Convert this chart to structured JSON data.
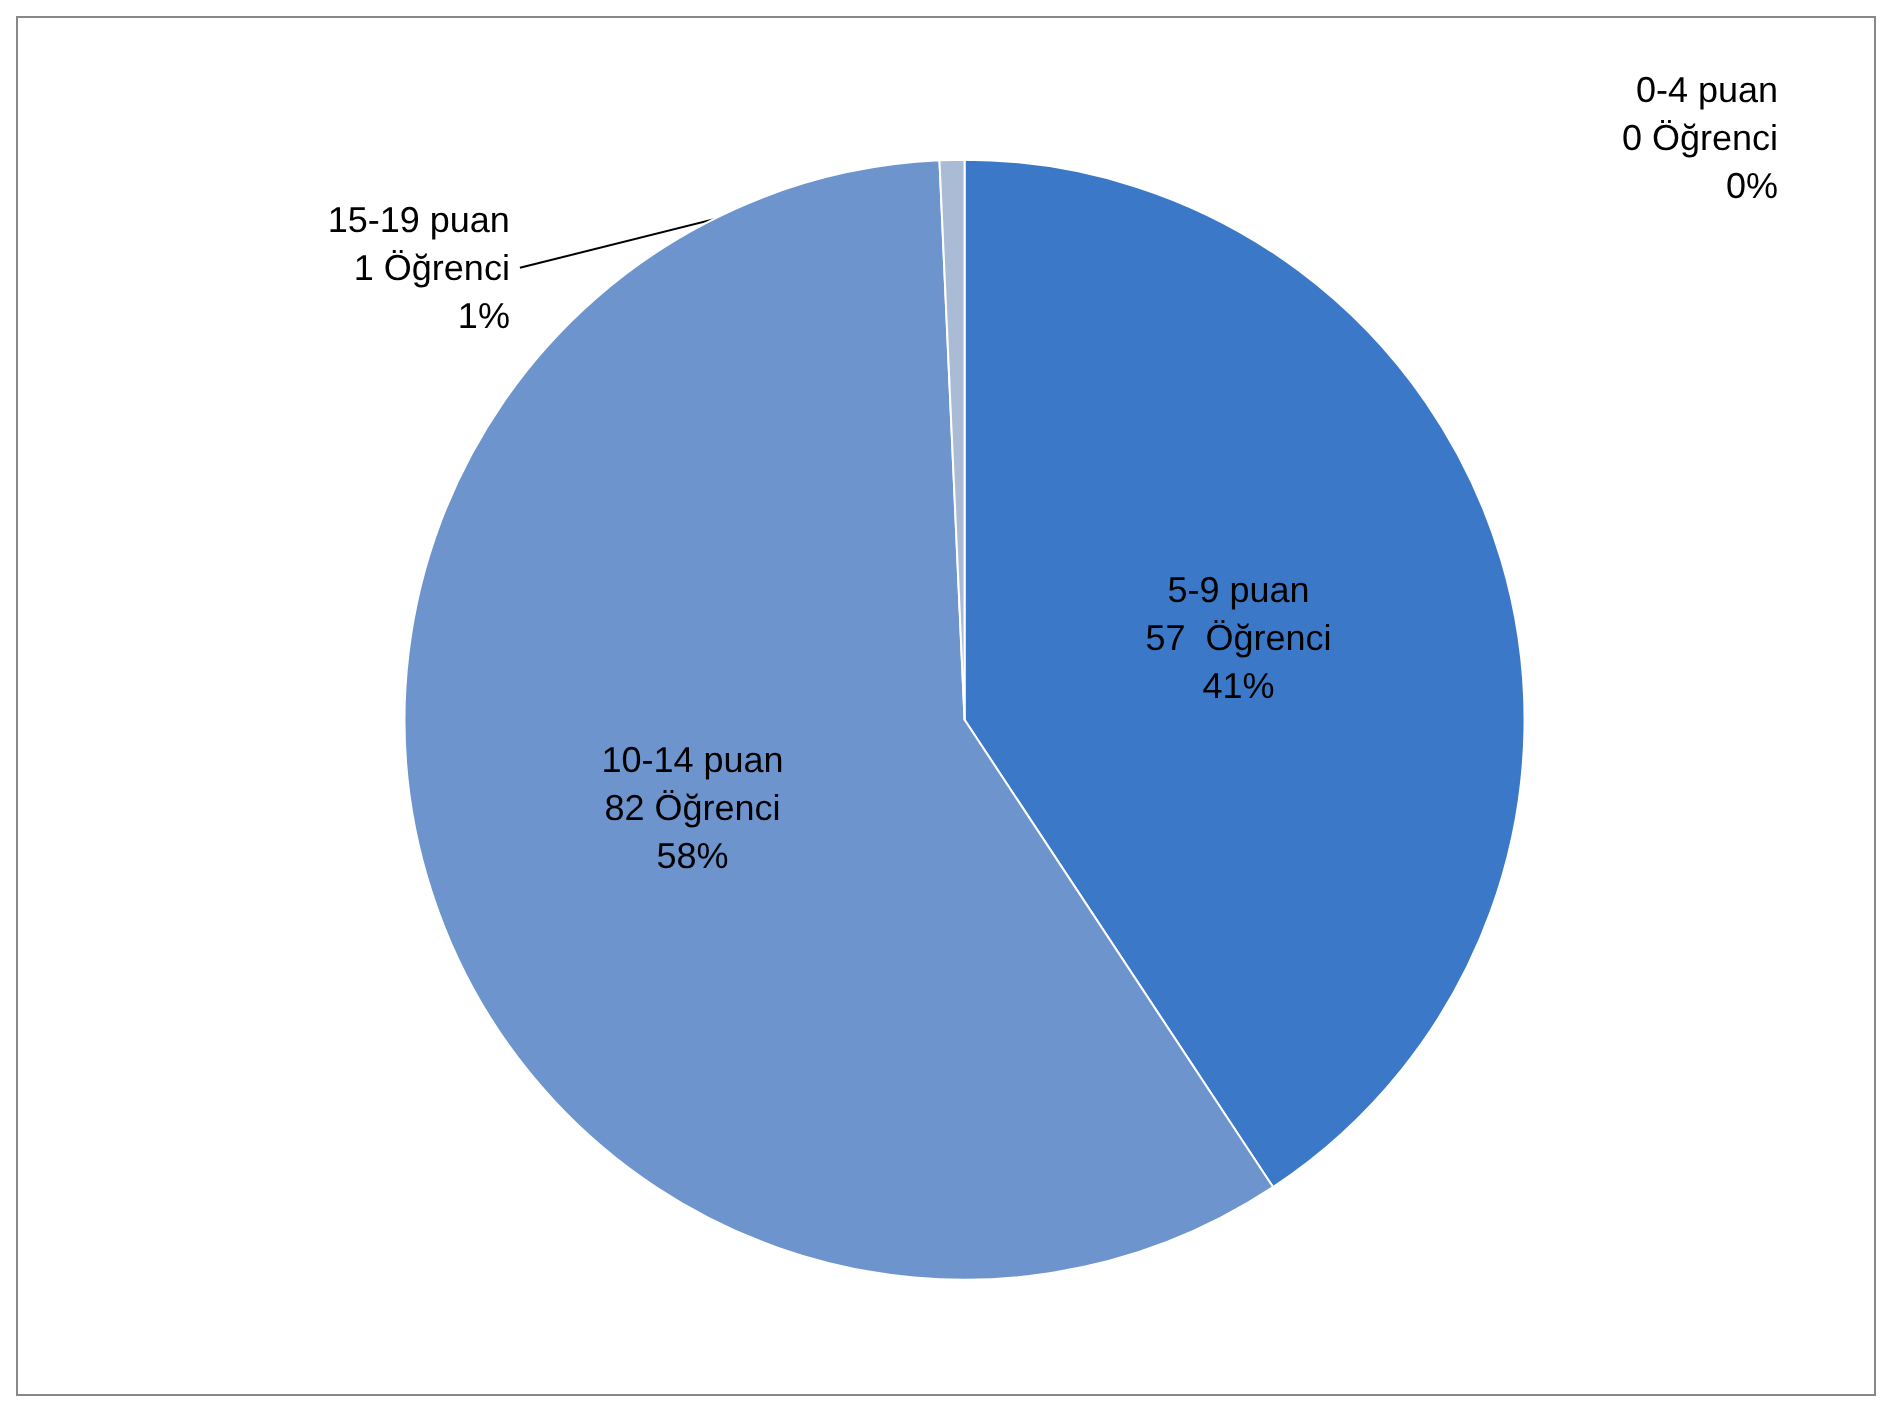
{
  "chart_data": {
    "type": "pie",
    "categories": [
      "0-4 puan",
      "5-9 puan",
      "10-14 puan",
      "15-19 puan"
    ],
    "values": [
      0,
      57,
      82,
      1
    ],
    "value_labels": [
      "0 Öğrenci\n0%",
      "57  Öğrenci\n41%",
      "82 Öğrenci\n58%",
      "1 Öğrenci\n1%"
    ],
    "colors": [
      "#4f81bd",
      "#3b78c8",
      "#6d94cc",
      "#aabbd6"
    ],
    "legend": false
  }
}
